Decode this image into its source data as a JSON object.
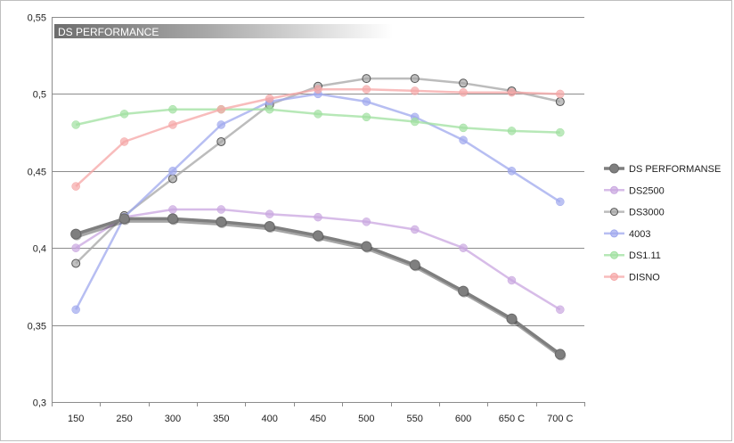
{
  "chart_data": {
    "type": "line",
    "title": "DS PERFORMANCE",
    "categories": [
      "150",
      "250",
      "300",
      "350",
      "400",
      "450",
      "500",
      "550",
      "600",
      "650 C",
      "700 C"
    ],
    "ylim": [
      0.3,
      0.55
    ],
    "yticks": [
      "0,3",
      "0,35",
      "0,4",
      "0,45",
      "0,5",
      "0,55"
    ],
    "yticks_values": [
      0.3,
      0.35,
      0.4,
      0.45,
      0.5,
      0.55
    ],
    "grid": true,
    "legend_position": "right",
    "series": [
      {
        "name": "DS PERFORMANSE",
        "color": "#7f7f7f",
        "values": [
          0.409,
          0.419,
          0.419,
          0.417,
          0.414,
          0.408,
          0.401,
          0.389,
          0.372,
          0.354,
          0.331
        ]
      },
      {
        "name": "DS2500",
        "color": "#c9a6e0",
        "values": [
          0.4,
          0.42,
          0.425,
          0.425,
          0.422,
          0.42,
          0.417,
          0.412,
          0.4,
          0.379,
          0.36
        ]
      },
      {
        "name": "DS3000",
        "color": "#a6a6a6",
        "values": [
          0.39,
          0.421,
          0.445,
          0.469,
          0.493,
          0.505,
          0.51,
          0.51,
          0.507,
          0.502,
          0.495
        ]
      },
      {
        "name": "4003",
        "color": "#9fa8ee",
        "values": [
          0.36,
          0.42,
          0.45,
          0.48,
          0.495,
          0.5,
          0.495,
          0.485,
          0.47,
          0.45,
          0.43
        ]
      },
      {
        "name": "DS1.11",
        "color": "#9fe09f",
        "values": [
          0.48,
          0.487,
          0.49,
          0.49,
          0.49,
          0.487,
          0.485,
          0.482,
          0.478,
          0.476,
          0.475
        ]
      },
      {
        "name": "DISNO",
        "color": "#f5a6a6",
        "values": [
          0.44,
          0.469,
          0.48,
          0.49,
          0.497,
          0.503,
          0.503,
          0.502,
          0.501,
          0.501,
          0.5
        ]
      }
    ]
  }
}
